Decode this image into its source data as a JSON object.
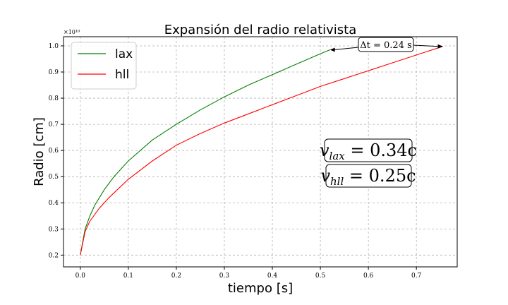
{
  "chart_data": {
    "type": "line",
    "title": "Expansión del radio relativista",
    "xlabel": "tiempo [s]",
    "ylabel": "Radio [cm]",
    "y_multiplier_label": "×10¹⁰",
    "xlim": [
      -0.035,
      0.785
    ],
    "ylim": [
      0.155,
      1.035
    ],
    "x_ticks": [
      0.0,
      0.1,
      0.2,
      0.3,
      0.4,
      0.5,
      0.6,
      0.7
    ],
    "x_tick_labels": [
      "0.0",
      "0.1",
      "0.2",
      "0.3",
      "0.4",
      "0.5",
      "0.6",
      "0.7"
    ],
    "y_ticks": [
      0.2,
      0.3,
      0.4,
      0.5,
      0.6,
      0.7,
      0.8,
      0.9,
      1.0
    ],
    "y_tick_labels": [
      "0.2",
      "0.3",
      "0.4",
      "0.5",
      "0.6",
      "0.7",
      "0.8",
      "0.9",
      "1.0"
    ],
    "grid": true,
    "legend_position": "top-left",
    "series": [
      {
        "name": "lax",
        "color": "#008000",
        "x": [
          0.0,
          0.01,
          0.02,
          0.03,
          0.05,
          0.07,
          0.1,
          0.15,
          0.2,
          0.25,
          0.3,
          0.35,
          0.4,
          0.45,
          0.5,
          0.52
        ],
        "y": [
          0.2,
          0.3,
          0.35,
          0.39,
          0.45,
          0.5,
          0.56,
          0.64,
          0.7,
          0.755,
          0.805,
          0.85,
          0.89,
          0.93,
          0.97,
          0.985
        ]
      },
      {
        "name": "hll",
        "color": "#ff0000",
        "x": [
          0.0,
          0.01,
          0.02,
          0.04,
          0.06,
          0.1,
          0.15,
          0.2,
          0.25,
          0.3,
          0.35,
          0.4,
          0.45,
          0.5,
          0.55,
          0.6,
          0.65,
          0.7,
          0.755
        ],
        "y": [
          0.2,
          0.29,
          0.33,
          0.38,
          0.42,
          0.49,
          0.56,
          0.62,
          0.665,
          0.705,
          0.74,
          0.775,
          0.81,
          0.845,
          0.875,
          0.905,
          0.935,
          0.965,
          0.998
        ]
      }
    ],
    "annotations": [
      {
        "text": "Δt = 0.24 s",
        "x_from": 0.52,
        "x_to": 0.755
      },
      {
        "text": "v_lax = 0.34c"
      },
      {
        "text": "v_hll = 0.25c"
      }
    ]
  },
  "annotation_text": {
    "delta_t": "Δt = 0.24 s",
    "v_lax_base": "v",
    "v_lax_sub": "lax",
    "v_lax_value": " = 0.34c",
    "v_hll_base": "v",
    "v_hll_sub": "hll",
    "v_hll_value": " = 0.25c"
  }
}
